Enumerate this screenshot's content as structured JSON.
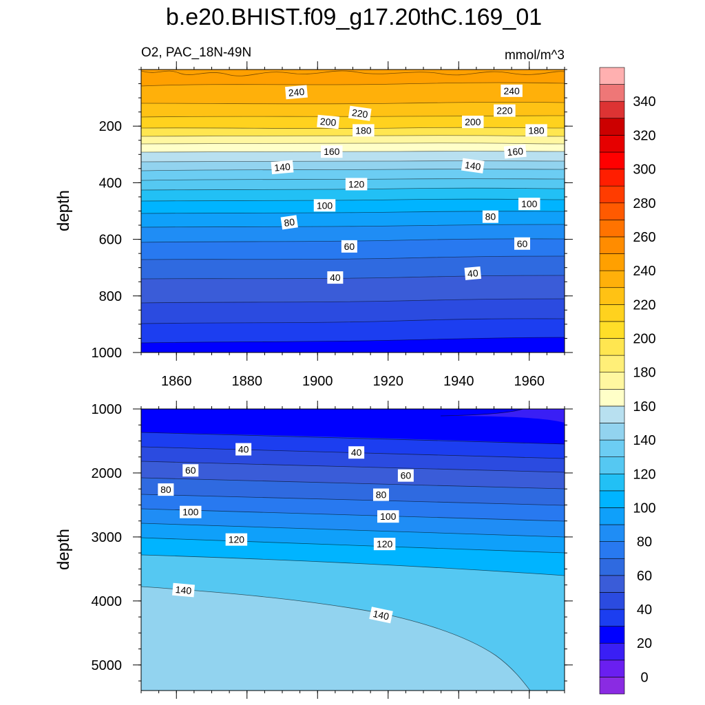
{
  "title": "b.e20.BHIST.f09_g17.20thC.169_01",
  "chart_data": {
    "type": "heatmap",
    "subtitle_left": "O2, PAC_18N-49N",
    "subtitle_right": "mmol/m^3",
    "x_axis": {
      "range": [
        1850,
        1970
      ],
      "ticks": [
        1860,
        1880,
        1900,
        1920,
        1940,
        1960
      ],
      "minor_step": 5
    },
    "colorbar": {
      "levels": [
        0,
        10,
        20,
        30,
        40,
        50,
        60,
        70,
        80,
        90,
        100,
        110,
        120,
        130,
        140,
        150,
        160,
        170,
        180,
        190,
        200,
        210,
        220,
        230,
        240,
        250,
        260,
        270,
        280,
        290,
        300,
        310,
        320,
        330,
        340,
        350
      ],
      "labels": [
        0,
        20,
        40,
        60,
        80,
        100,
        120,
        140,
        160,
        180,
        200,
        220,
        240,
        260,
        280,
        300,
        320,
        340
      ],
      "colors": [
        "#8a2be2",
        "#6a1ff0",
        "#3a1ff5",
        "#0000ff",
        "#1c3ef0",
        "#2b4be0",
        "#3a5cd8",
        "#2f6ae0",
        "#2879f0",
        "#1f8df5",
        "#0fa0fa",
        "#00b4ff",
        "#22c0f5",
        "#55c8f2",
        "#6ccdf3",
        "#92d3ef",
        "#b8e0f0",
        "#ffffc8",
        "#fff7a0",
        "#ffef78",
        "#ffe650",
        "#ffde28",
        "#ffd21e",
        "#ffc214",
        "#ffb00a",
        "#ffa000",
        "#ff8c00",
        "#ff7300",
        "#ff5a00",
        "#ff3c00",
        "#ff1e00",
        "#ff0000",
        "#e60000",
        "#cc0000",
        "#dd3333",
        "#ee7777",
        "#ffb0b0"
      ]
    },
    "panels": [
      {
        "name": "upper",
        "ylabel": "depth",
        "ylim": [
          0,
          1000
        ],
        "yticks": [
          200,
          400,
          600,
          800,
          1000
        ],
        "y_minor_step": 50,
        "contour_labels": [
          {
            "text": "240",
            "year": 1894,
            "depth": 80,
            "rot": -5
          },
          {
            "text": "240",
            "year": 1955,
            "depth": 75,
            "rot": 0
          },
          {
            "text": "220",
            "year": 1912,
            "depth": 155,
            "rot": 8
          },
          {
            "text": "220",
            "year": 1953,
            "depth": 145,
            "rot": 0
          },
          {
            "text": "200",
            "year": 1903,
            "depth": 185,
            "rot": 5
          },
          {
            "text": "200",
            "year": 1944,
            "depth": 185,
            "rot": 0
          },
          {
            "text": "180",
            "year": 1913,
            "depth": 215,
            "rot": 0
          },
          {
            "text": "180",
            "year": 1962,
            "depth": 215,
            "rot": 0
          },
          {
            "text": "160",
            "year": 1904,
            "depth": 290,
            "rot": 0
          },
          {
            "text": "160",
            "year": 1956,
            "depth": 290,
            "rot": -5
          },
          {
            "text": "140",
            "year": 1890,
            "depth": 345,
            "rot": -5
          },
          {
            "text": "140",
            "year": 1944,
            "depth": 340,
            "rot": 8
          },
          {
            "text": "120",
            "year": 1911,
            "depth": 405,
            "rot": 0
          },
          {
            "text": "100",
            "year": 1902,
            "depth": 480,
            "rot": 0
          },
          {
            "text": "100",
            "year": 1960,
            "depth": 475,
            "rot": 0
          },
          {
            "text": "80",
            "year": 1892,
            "depth": 540,
            "rot": -8
          },
          {
            "text": "80",
            "year": 1949,
            "depth": 520,
            "rot": 0
          },
          {
            "text": "60",
            "year": 1909,
            "depth": 625,
            "rot": 0
          },
          {
            "text": "60",
            "year": 1958,
            "depth": 615,
            "rot": 0
          },
          {
            "text": "40",
            "year": 1905,
            "depth": 735,
            "rot": 0
          },
          {
            "text": "40",
            "year": 1944,
            "depth": 720,
            "rot": -5
          }
        ]
      },
      {
        "name": "lower",
        "ylabel": "depth",
        "ylim": [
          1000,
          5400
        ],
        "yticks": [
          1000,
          2000,
          3000,
          4000,
          5000
        ],
        "y_minor_step": 250,
        "contour_labels": [
          {
            "text": "40",
            "year": 1879,
            "depth": 1630,
            "rot": 0
          },
          {
            "text": "40",
            "year": 1911,
            "depth": 1680,
            "rot": 0
          },
          {
            "text": "60",
            "year": 1864,
            "depth": 1960,
            "rot": 0
          },
          {
            "text": "60",
            "year": 1925,
            "depth": 2040,
            "rot": 0
          },
          {
            "text": "80",
            "year": 1857,
            "depth": 2260,
            "rot": 0
          },
          {
            "text": "80",
            "year": 1918,
            "depth": 2340,
            "rot": 0
          },
          {
            "text": "100",
            "year": 1864,
            "depth": 2610,
            "rot": 0
          },
          {
            "text": "100",
            "year": 1920,
            "depth": 2680,
            "rot": 0
          },
          {
            "text": "120",
            "year": 1877,
            "depth": 3040,
            "rot": 0
          },
          {
            "text": "120",
            "year": 1919,
            "depth": 3110,
            "rot": 0
          },
          {
            "text": "140",
            "year": 1862,
            "depth": 3830,
            "rot": 5
          },
          {
            "text": "140",
            "year": 1918,
            "depth": 4220,
            "rot": 12
          }
        ]
      }
    ]
  }
}
